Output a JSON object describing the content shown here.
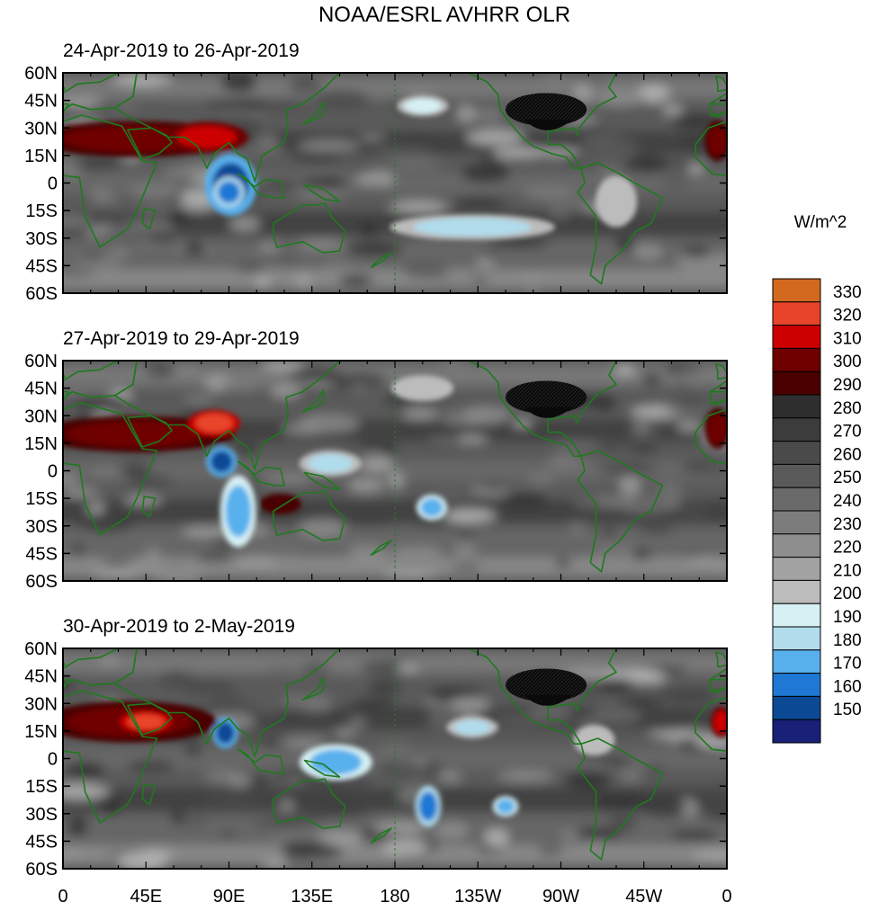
{
  "chart_data": {
    "type": "heatmap",
    "title": "NOAA/ESRL AVHRR OLR",
    "units": "W/m^2",
    "lat_ticks": [
      "60N",
      "45N",
      "30N",
      "15N",
      "0",
      "15S",
      "30S",
      "45S",
      "60S"
    ],
    "lon_ticks": [
      "0",
      "45E",
      "90E",
      "135E",
      "180",
      "135W",
      "90W",
      "45W",
      "0"
    ],
    "lat_range": [
      -60,
      60
    ],
    "lon_range": [
      0,
      360
    ],
    "colorbar": {
      "levels": [
        330,
        320,
        310,
        300,
        290,
        280,
        270,
        260,
        250,
        240,
        230,
        220,
        210,
        200,
        190,
        180,
        170,
        160,
        150
      ],
      "colors": [
        "#d2691e",
        "#e8442a",
        "#cc0000",
        "#6e0000",
        "#4a0000",
        "#2e2e2e",
        "#3c3c3c",
        "#4a4a4a",
        "#5a5a5a",
        "#6a6a6a",
        "#7c7c7c",
        "#8e8e8e",
        "#a2a2a2",
        "#bcbcbc",
        "#d6f0f4",
        "#b0dcec",
        "#58b0ec",
        "#1e78d4",
        "#0c4a96",
        "#182078"
      ]
    },
    "panels": [
      {
        "label": "24-Apr-2019 to 26-Apr-2019",
        "features": [
          {
            "kind": "cold",
            "lon": 91,
            "lat": -1,
            "rlon": 10,
            "rlat": 12,
            "level": 150
          },
          {
            "kind": "cold",
            "lon": 90,
            "lat": -5,
            "rlon": 6,
            "rlat": 6,
            "level": 160
          },
          {
            "kind": "cold",
            "lon": 222,
            "lat": -24,
            "rlon": 32,
            "rlat": 5,
            "level": 180
          },
          {
            "kind": "cold",
            "lon": 300,
            "lat": -10,
            "rlon": 8,
            "rlat": 10,
            "level": 200
          },
          {
            "kind": "cold",
            "lon": 195,
            "lat": 42,
            "rlon": 10,
            "rlat": 4,
            "level": 190
          },
          {
            "kind": "hot",
            "lon": 40,
            "lat": 24,
            "rlon": 40,
            "rlat": 7,
            "level": 300
          },
          {
            "kind": "hot",
            "lon": 78,
            "lat": 25,
            "rlon": 16,
            "rlat": 6,
            "level": 310
          },
          {
            "kind": "hot",
            "lon": 355,
            "lat": 23,
            "rlon": 5,
            "rlat": 8,
            "level": 300
          },
          {
            "kind": "mask",
            "lon": 262,
            "lat": 40,
            "rlon": 22,
            "rlat": 9,
            "level": 290
          }
        ]
      },
      {
        "label": "27-Apr-2019 to 29-Apr-2019",
        "features": [
          {
            "kind": "cold",
            "lon": 86,
            "lat": 5,
            "rlon": 6,
            "rlat": 6,
            "level": 150
          },
          {
            "kind": "cold",
            "lon": 95,
            "lat": -22,
            "rlon": 7,
            "rlat": 14,
            "level": 170
          },
          {
            "kind": "cold",
            "lon": 145,
            "lat": 4,
            "rlon": 12,
            "rlat": 5,
            "level": 180
          },
          {
            "kind": "cold",
            "lon": 200,
            "lat": -20,
            "rlon": 6,
            "rlat": 5,
            "level": 170
          },
          {
            "kind": "cold",
            "lon": 195,
            "lat": 45,
            "rlon": 12,
            "rlat": 5,
            "level": 200
          },
          {
            "kind": "hot",
            "lon": 40,
            "lat": 20,
            "rlon": 38,
            "rlat": 7,
            "level": 300
          },
          {
            "kind": "hot",
            "lon": 82,
            "lat": 26,
            "rlon": 10,
            "rlat": 5,
            "level": 320
          },
          {
            "kind": "hot",
            "lon": 118,
            "lat": -18,
            "rlon": 8,
            "rlat": 4,
            "level": 290
          },
          {
            "kind": "hot",
            "lon": 355,
            "lat": 23,
            "rlon": 5,
            "rlat": 8,
            "level": 300
          },
          {
            "kind": "mask",
            "lon": 262,
            "lat": 40,
            "rlon": 22,
            "rlat": 9,
            "level": 290
          }
        ]
      },
      {
        "label": "30-Apr-2019 to 2-May-2019",
        "features": [
          {
            "kind": "cold",
            "lon": 88,
            "lat": 14,
            "rlon": 5,
            "rlat": 6,
            "level": 150
          },
          {
            "kind": "cold",
            "lon": 148,
            "lat": -2,
            "rlon": 14,
            "rlat": 7,
            "level": 170
          },
          {
            "kind": "cold",
            "lon": 198,
            "lat": -26,
            "rlon": 5,
            "rlat": 8,
            "level": 160
          },
          {
            "kind": "cold",
            "lon": 240,
            "lat": -26,
            "rlon": 5,
            "rlat": 4,
            "level": 170
          },
          {
            "kind": "cold",
            "lon": 222,
            "lat": 17,
            "rlon": 10,
            "rlat": 4,
            "level": 180
          },
          {
            "kind": "cold",
            "lon": 288,
            "lat": 10,
            "rlon": 8,
            "rlat": 6,
            "level": 200
          },
          {
            "kind": "hot",
            "lon": 36,
            "lat": 20,
            "rlon": 34,
            "rlat": 8,
            "level": 300
          },
          {
            "kind": "hot",
            "lon": 45,
            "lat": 20,
            "rlon": 10,
            "rlat": 4,
            "level": 320
          },
          {
            "kind": "hot",
            "lon": 357,
            "lat": 20,
            "rlon": 4,
            "rlat": 6,
            "level": 310
          },
          {
            "kind": "mask",
            "lon": 262,
            "lat": 40,
            "rlon": 22,
            "rlat": 9,
            "level": 290
          }
        ]
      }
    ]
  }
}
